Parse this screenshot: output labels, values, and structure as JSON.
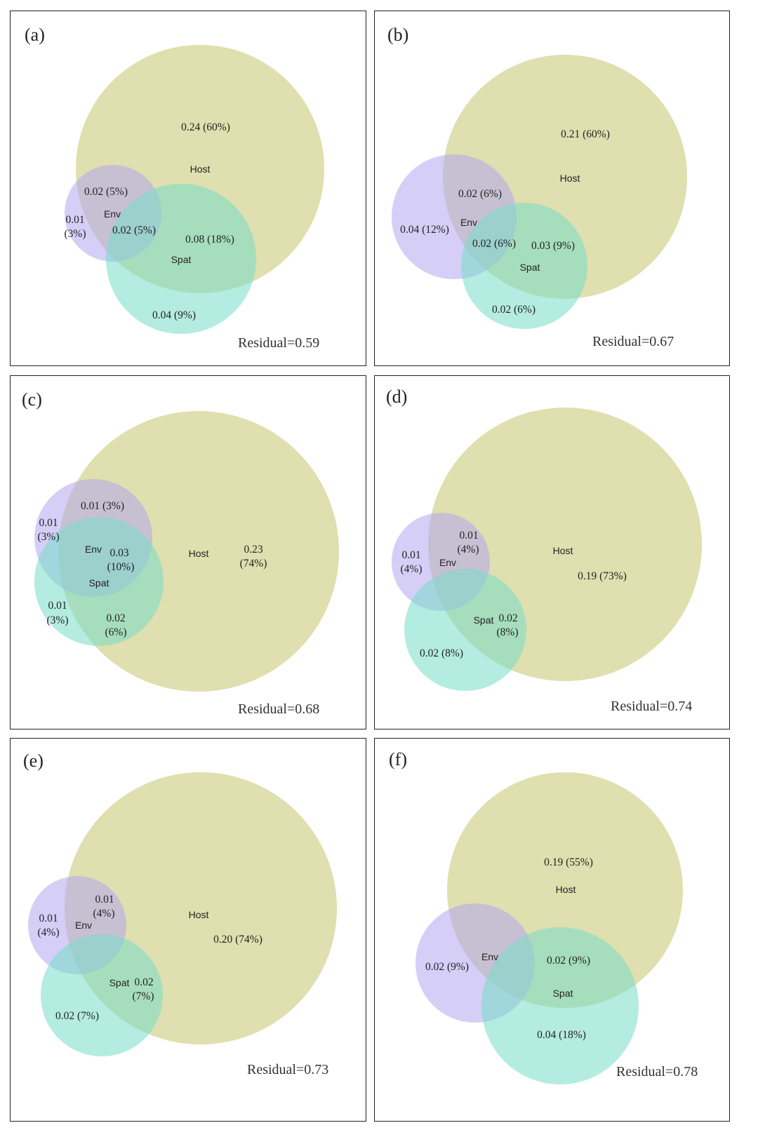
{
  "colors": {
    "host": "#c9c97a",
    "env": "#b3a6f0",
    "spat": "#76dcc9"
  },
  "set_names": {
    "host": "Host",
    "env": "Env",
    "spat": "Spat"
  },
  "panels": [
    {
      "label": "(a)",
      "residual": "Residual=0.59",
      "values": {
        "host_only": "0.24 (60%)",
        "env_host": "0.02 (5%)",
        "env_only_1": "0.01",
        "env_only_2": "(3%)",
        "env_host_spat": "0.02 (5%)",
        "host_spat": "0.08 (18%)",
        "spat_only": "0.04 (9%)"
      }
    },
    {
      "label": "(b)",
      "residual": "Residual=0.67",
      "values": {
        "host_only": "0.21 (60%)",
        "env_host": "0.02 (6%)",
        "env_only": "0.04 (12%)",
        "env_host_spat": "0.02 (6%)",
        "host_spat": "0.03 (9%)",
        "spat_only": "0.02 (6%)"
      }
    },
    {
      "label": "(c)",
      "residual": "Residual=0.68",
      "values": {
        "env_host": "0.01 (3%)",
        "env_only_1": "0.01",
        "env_only_2": "(3%)",
        "all_three_1": "0.03",
        "all_three_2": "(10%)",
        "host_only_1": "0.23",
        "host_only_2": "(74%)",
        "spat_only_1": "0.01",
        "spat_only_2": "(3%)",
        "host_spat_1": "0.02",
        "host_spat_2": "(6%)"
      }
    },
    {
      "label": "(d)",
      "residual": "Residual=0.74",
      "values": {
        "env_only_1": "0.01",
        "env_only_2": "(4%)",
        "env_host_1": "0.01",
        "env_host_2": "(4%)",
        "host_only": "0.19 (73%)",
        "host_spat_1": "0.02",
        "host_spat_2": "(8%)",
        "spat_only": "0.02 (8%)"
      }
    },
    {
      "label": "(e)",
      "residual": "Residual=0.73",
      "values": {
        "env_only_1": "0.01",
        "env_only_2": "(4%)",
        "env_host_1": "0.01",
        "env_host_2": "(4%)",
        "host_only": "0.20 (74%)",
        "host_spat_1": "0.02",
        "host_spat_2": "(7%)",
        "spat_only": "0.02 (7%)"
      }
    },
    {
      "label": "(f)",
      "residual": "Residual=0.78",
      "values": {
        "host_only": "0.19 (55%)",
        "env_only": "0.02 (9%)",
        "host_spat": "0.02 (9%)",
        "spat_only": "0.04 (18%)"
      }
    }
  ]
}
